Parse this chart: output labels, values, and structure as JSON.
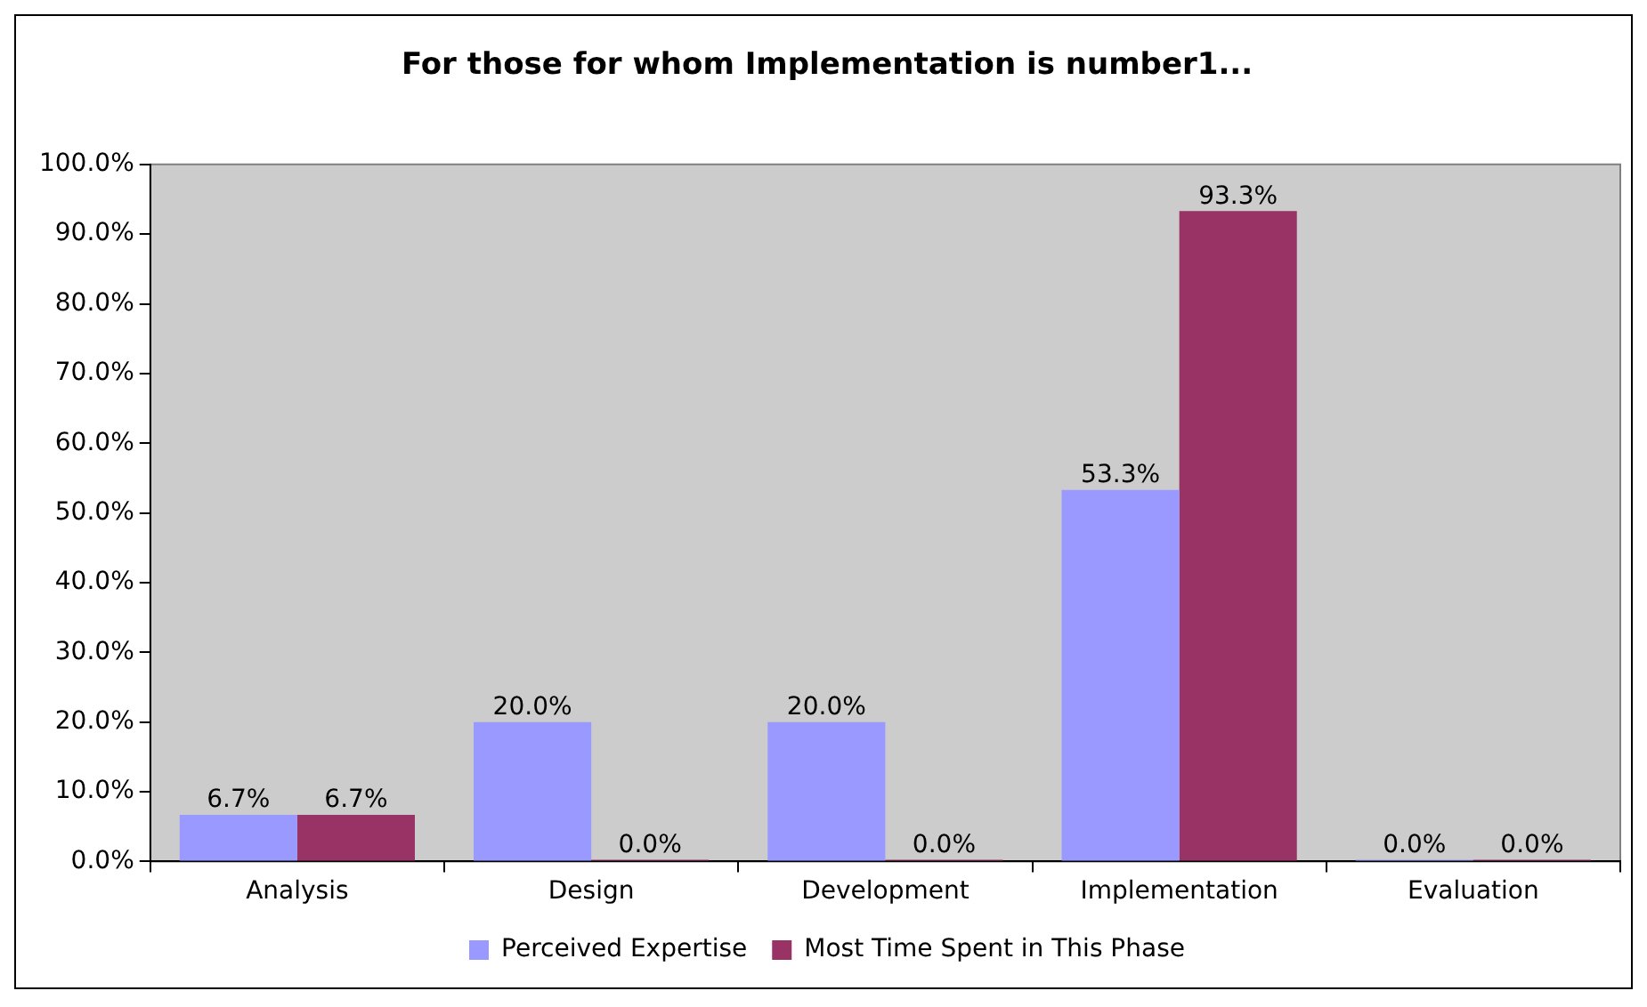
{
  "chart_data": {
    "type": "bar",
    "title": "For those for whom Implementation is number1...",
    "categories": [
      "Analysis",
      "Design",
      "Development",
      "Implementation",
      "Evaluation"
    ],
    "series": [
      {
        "name": "Perceived Expertise",
        "color": "#9999ff",
        "values": [
          6.7,
          20.0,
          20.0,
          53.3,
          0.0
        ],
        "value_labels": [
          "6.7%",
          "20.0%",
          "20.0%",
          "53.3%",
          "0.0%"
        ]
      },
      {
        "name": "Most Time Spent in This Phase",
        "color": "#993366",
        "values": [
          6.7,
          0.0,
          0.0,
          93.3,
          0.0
        ],
        "value_labels": [
          "6.7%",
          "0.0%",
          "0.0%",
          "93.3%",
          "0.0%"
        ]
      }
    ],
    "ylim": [
      0,
      100
    ],
    "yticks": [
      {
        "value": 0,
        "label": "0.0%"
      },
      {
        "value": 10,
        "label": "10.0%"
      },
      {
        "value": 20,
        "label": "20.0%"
      },
      {
        "value": 30,
        "label": "30.0%"
      },
      {
        "value": 40,
        "label": "40.0%"
      },
      {
        "value": 50,
        "label": "50.0%"
      },
      {
        "value": 60,
        "label": "60.0%"
      },
      {
        "value": 70,
        "label": "70.0%"
      },
      {
        "value": 80,
        "label": "80.0%"
      },
      {
        "value": 90,
        "label": "90.0%"
      },
      {
        "value": 100,
        "label": "100.0%"
      }
    ],
    "grid": false,
    "legend": "bottom"
  }
}
